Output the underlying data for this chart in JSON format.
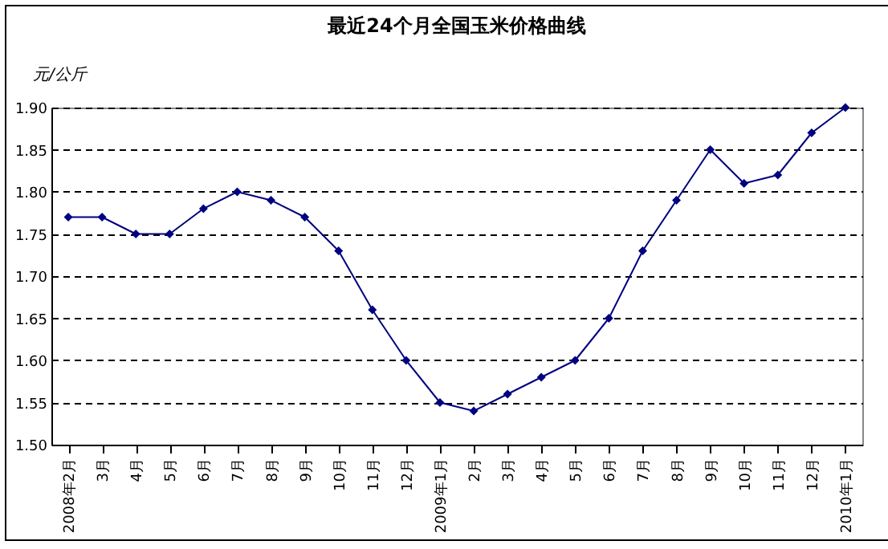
{
  "chart_data": {
    "type": "line",
    "title": "最近24个月全国玉米价格曲线",
    "ylabel": "元/公斤",
    "categories": [
      "2008年2月",
      "3月",
      "4月",
      "5月",
      "6月",
      "7月",
      "8月",
      "9月",
      "10月",
      "11月",
      "12月",
      "2009年1月",
      "2月",
      "3月",
      "4月",
      "5月",
      "6月",
      "7月",
      "8月",
      "9月",
      "10月",
      "11月",
      "12月",
      "2010年1月"
    ],
    "series": [
      {
        "color": "#000080",
        "values": [
          1.77,
          1.77,
          1.75,
          1.75,
          1.78,
          1.8,
          1.79,
          1.77,
          1.73,
          1.66,
          1.6,
          1.55,
          1.54,
          1.56,
          1.58,
          1.6,
          1.65,
          1.73,
          1.79,
          1.85,
          1.81,
          1.82,
          1.87,
          1.9
        ]
      }
    ],
    "marker": "diamond",
    "line_style": "solid",
    "grid": "y",
    "ylim": [
      1.5,
      1.9
    ],
    "yticks": [
      {
        "value": 1.5,
        "label": "1.50"
      },
      {
        "value": 1.55,
        "label": "1.55"
      },
      {
        "value": 1.6,
        "label": "1.60"
      },
      {
        "value": 1.65,
        "label": "1.65"
      },
      {
        "value": 1.7,
        "label": "1.70"
      },
      {
        "value": 1.75,
        "label": "1.75"
      },
      {
        "value": 1.8,
        "label": "1.80"
      },
      {
        "value": 1.85,
        "label": "1.85"
      },
      {
        "value": 1.9,
        "label": "1.90"
      }
    ]
  }
}
